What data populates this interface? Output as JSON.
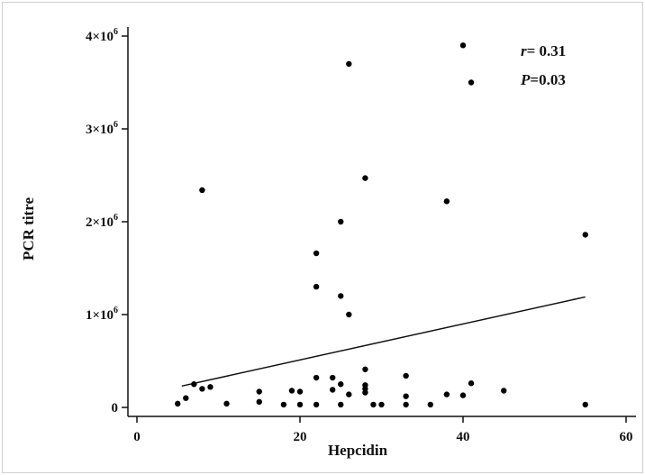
{
  "chart_data": {
    "type": "scatter",
    "xlabel": "Hepcidin",
    "ylabel": "PCR titre",
    "xlim": [
      0,
      60
    ],
    "ylim": [
      0,
      4000000
    ],
    "x_ticks": [
      0,
      20,
      40,
      60
    ],
    "x_tick_labels": [
      "0",
      "20",
      "40",
      "60"
    ],
    "y_ticks": [
      0,
      1000000,
      2000000,
      3000000,
      4000000
    ],
    "y_tick_base": [
      "0",
      "1×10",
      "2×10",
      "3×10",
      "4×10"
    ],
    "y_tick_exp": [
      "",
      "6",
      "6",
      "6",
      "6"
    ],
    "grid": false,
    "annotations": [
      {
        "italic": "r",
        "text": "= 0.31"
      },
      {
        "italic": "P",
        "text": "=0.03"
      }
    ],
    "trendline": {
      "x": [
        5.5,
        55
      ],
      "y": [
        230000,
        1190000
      ]
    },
    "points": [
      {
        "x": 40,
        "y": 3900000
      },
      {
        "x": 26,
        "y": 3700000
      },
      {
        "x": 41,
        "y": 3500000
      },
      {
        "x": 28,
        "y": 2470000
      },
      {
        "x": 8,
        "y": 2340000
      },
      {
        "x": 38,
        "y": 2220000
      },
      {
        "x": 25,
        "y": 2000000
      },
      {
        "x": 55,
        "y": 1860000
      },
      {
        "x": 22,
        "y": 1660000
      },
      {
        "x": 22,
        "y": 1300000
      },
      {
        "x": 25,
        "y": 1200000
      },
      {
        "x": 26,
        "y": 1000000
      },
      {
        "x": 28,
        "y": 410000
      },
      {
        "x": 22,
        "y": 320000
      },
      {
        "x": 24,
        "y": 320000
      },
      {
        "x": 33,
        "y": 340000
      },
      {
        "x": 41,
        "y": 260000
      },
      {
        "x": 7,
        "y": 250000
      },
      {
        "x": 25,
        "y": 250000
      },
      {
        "x": 28,
        "y": 240000
      },
      {
        "x": 9,
        "y": 220000
      },
      {
        "x": 8,
        "y": 200000
      },
      {
        "x": 28,
        "y": 200000
      },
      {
        "x": 24,
        "y": 190000
      },
      {
        "x": 19,
        "y": 180000
      },
      {
        "x": 45,
        "y": 180000
      },
      {
        "x": 15,
        "y": 170000
      },
      {
        "x": 20,
        "y": 170000
      },
      {
        "x": 28,
        "y": 160000
      },
      {
        "x": 26,
        "y": 140000
      },
      {
        "x": 38,
        "y": 140000
      },
      {
        "x": 40,
        "y": 130000
      },
      {
        "x": 33,
        "y": 120000
      },
      {
        "x": 6,
        "y": 100000
      },
      {
        "x": 15,
        "y": 60000
      },
      {
        "x": 5,
        "y": 40000
      },
      {
        "x": 11,
        "y": 40000
      },
      {
        "x": 18,
        "y": 30000
      },
      {
        "x": 20,
        "y": 30000
      },
      {
        "x": 22,
        "y": 30000
      },
      {
        "x": 25,
        "y": 30000
      },
      {
        "x": 29,
        "y": 30000
      },
      {
        "x": 30,
        "y": 30000
      },
      {
        "x": 33,
        "y": 30000
      },
      {
        "x": 36,
        "y": 30000
      },
      {
        "x": 55,
        "y": 30000
      }
    ]
  }
}
